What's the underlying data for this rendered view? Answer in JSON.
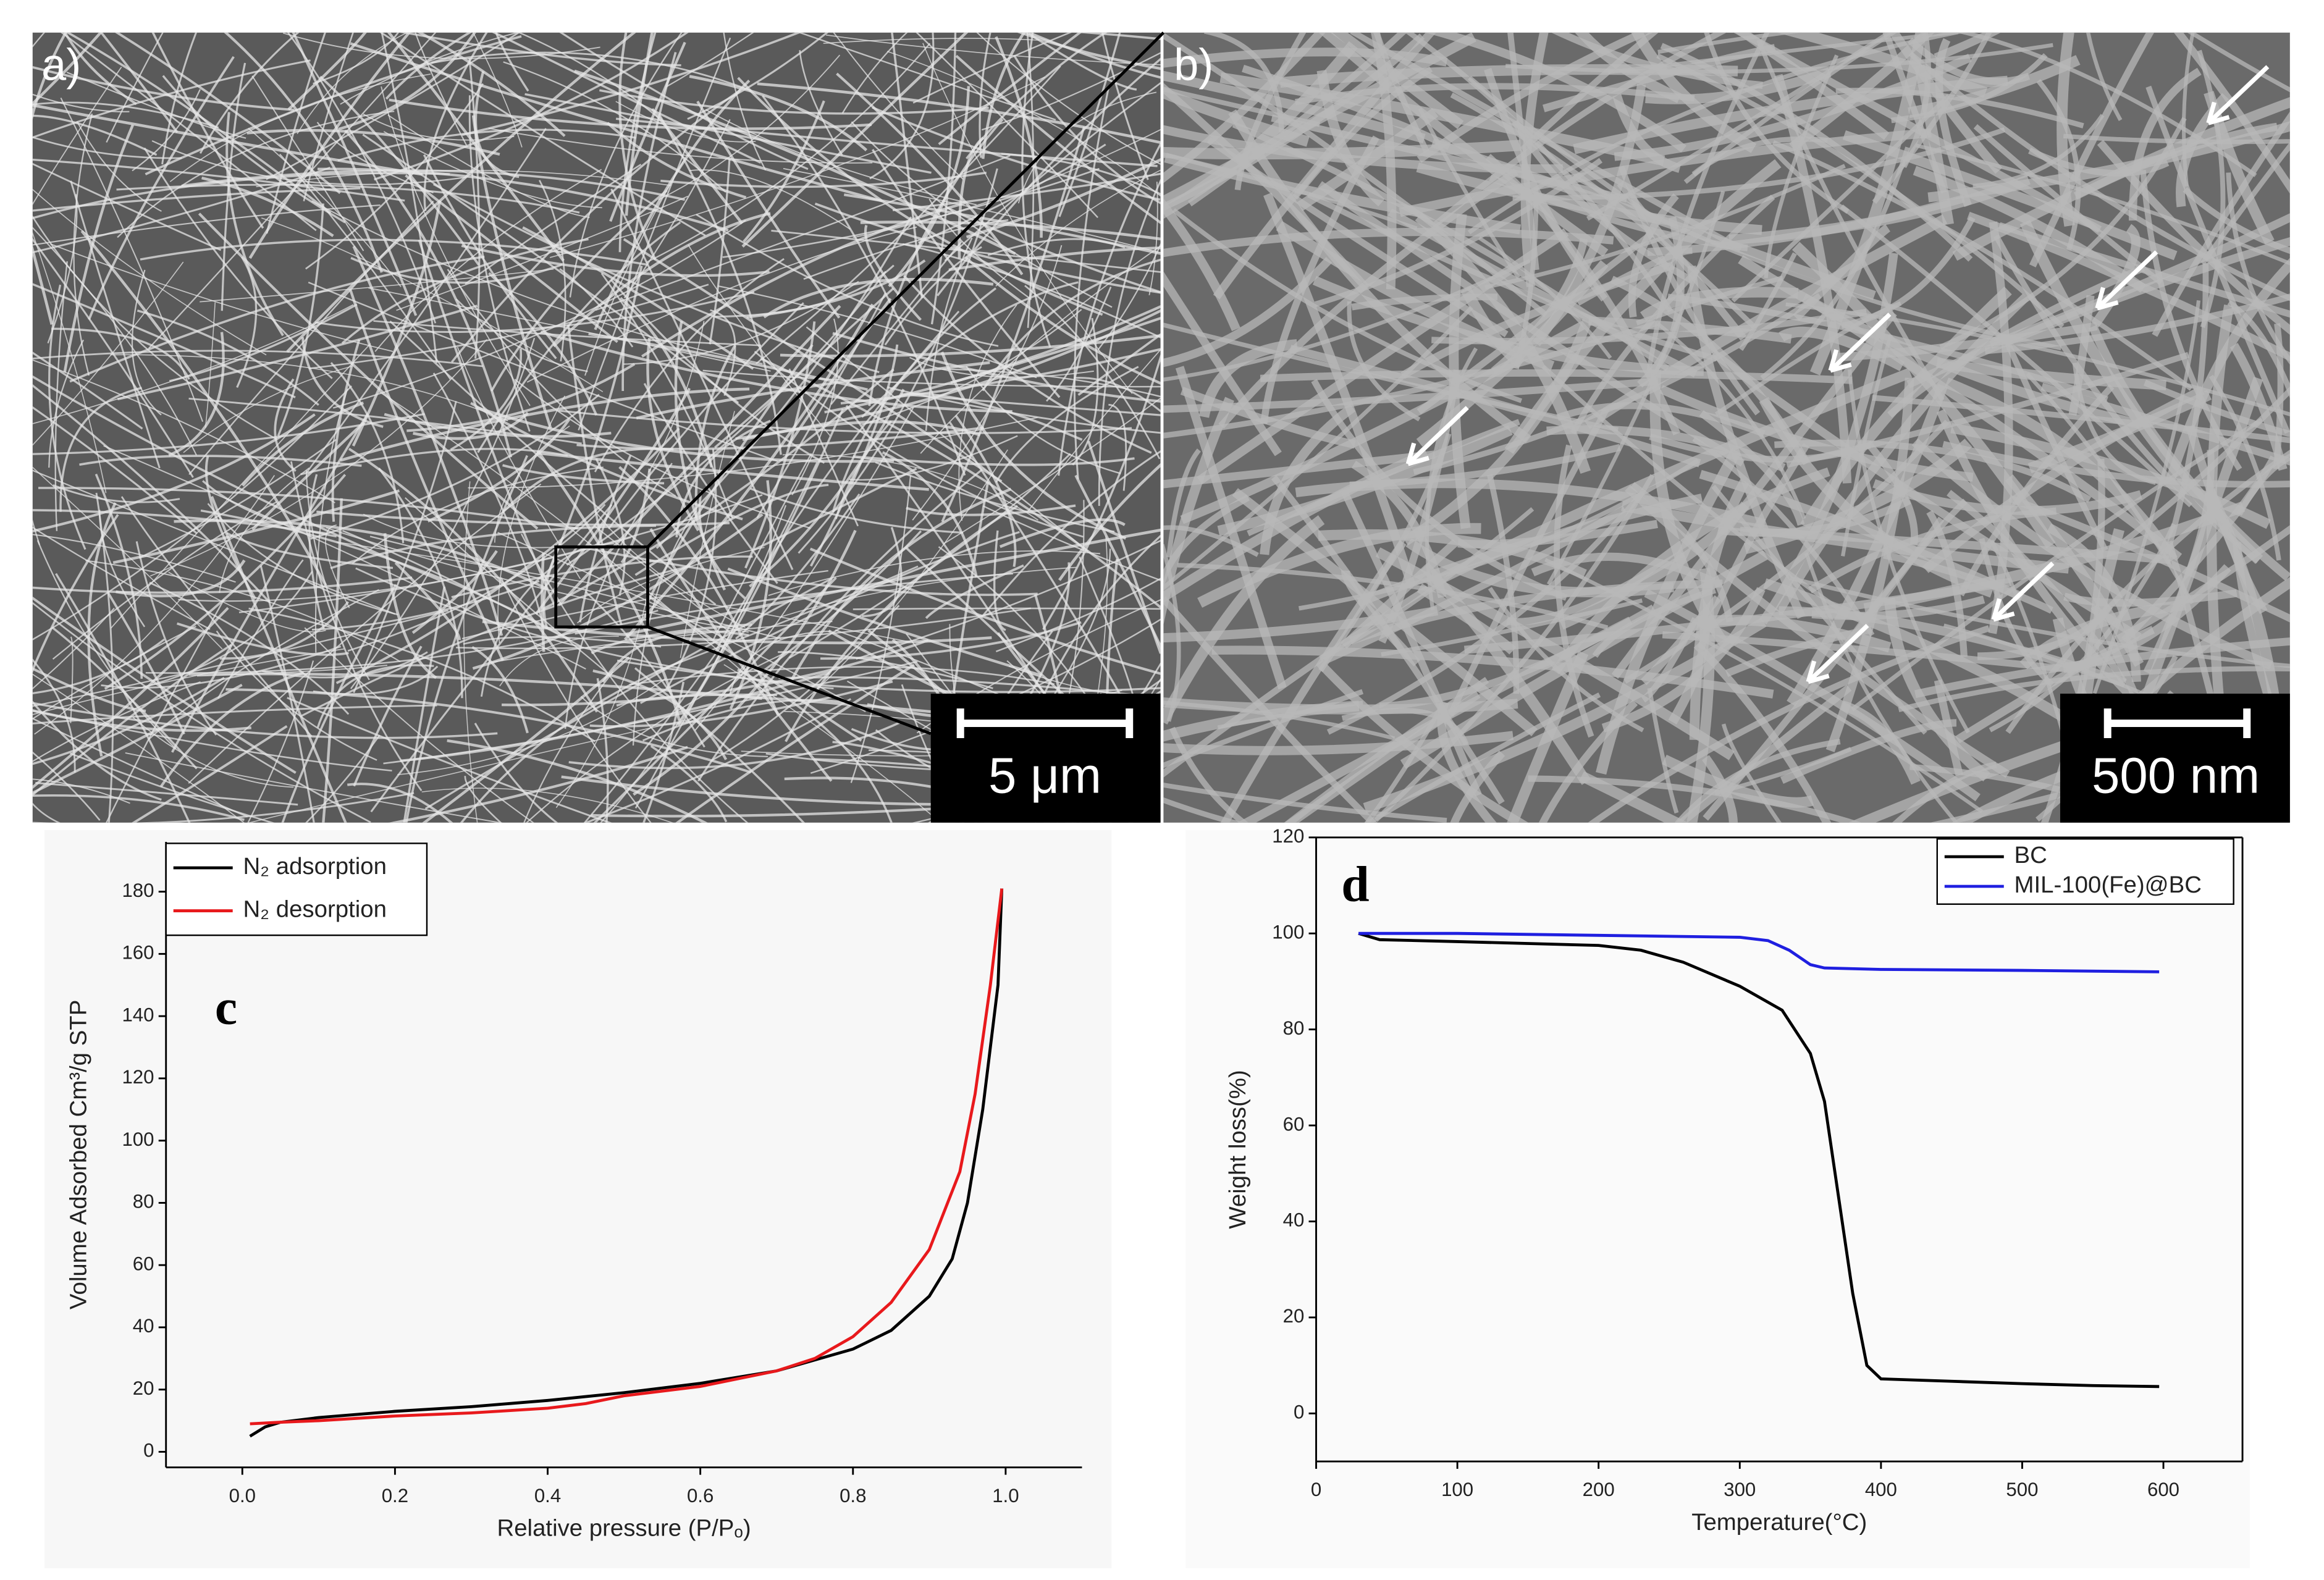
{
  "images": [
    {
      "label": "a)",
      "scale_bar": "5 μm"
    },
    {
      "label": "b)",
      "scale_bar": "500 nm"
    }
  ],
  "chart_data": [
    {
      "type": "line",
      "annotation": "c",
      "x_label": "Relative pressure (P/Pₒ)",
      "y_label": "Volume Adsorbed Cm³/g STP",
      "xlim": [
        -0.1,
        1.1
      ],
      "ylim": [
        -5,
        196
      ],
      "xticks": [
        {
          "value": 0,
          "label": "0.0"
        },
        0.2,
        0.4,
        0.6,
        0.8,
        {
          "value": 1,
          "label": "1.0"
        }
      ],
      "yticks": [
        0,
        20,
        40,
        60,
        80,
        100,
        120,
        140,
        160,
        180
      ],
      "legend": "upper left",
      "series": [
        {
          "name": "N₂ adsorption",
          "color": "#000000",
          "x": [
            0.01,
            0.03,
            0.05,
            0.1,
            0.2,
            0.3,
            0.4,
            0.5,
            0.6,
            0.7,
            0.8,
            0.85,
            0.9,
            0.93,
            0.95,
            0.97,
            0.99,
            0.995
          ],
          "values": [
            5,
            8,
            9.5,
            11,
            13,
            14.5,
            16.5,
            19,
            22,
            26,
            33,
            39,
            50,
            62,
            80,
            110,
            150,
            181
          ]
        },
        {
          "name": "N₂ desorption",
          "color": "#e8191c",
          "x": [
            0.995,
            0.98,
            0.96,
            0.94,
            0.9,
            0.85,
            0.8,
            0.75,
            0.7,
            0.6,
            0.5,
            0.45,
            0.4,
            0.3,
            0.2,
            0.1,
            0.05,
            0.01
          ],
          "values": [
            181,
            150,
            115,
            90,
            65,
            48,
            37,
            30,
            26,
            21,
            18,
            15.5,
            14,
            12.5,
            11.5,
            10,
            9.5,
            9
          ]
        }
      ]
    },
    {
      "type": "line",
      "annotation": "d",
      "x_label": "Temperature(°C)",
      "y_label": "Weight loss(%)",
      "xlim": [
        0,
        656
      ],
      "ylim": [
        -10,
        120
      ],
      "xticks": [
        0,
        100,
        200,
        300,
        400,
        500,
        600
      ],
      "yticks": [
        0,
        20,
        40,
        60,
        80,
        100,
        120
      ],
      "legend": "upper right",
      "series": [
        {
          "name": "BC",
          "color": "#000000",
          "x": [
            30,
            45,
            100,
            200,
            230,
            260,
            300,
            330,
            350,
            360,
            370,
            380,
            390,
            400,
            450,
            500,
            550,
            597
          ],
          "values": [
            100,
            98.7,
            98.3,
            97.5,
            96.5,
            94,
            89,
            84,
            75,
            65,
            45,
            25,
            10,
            7.2,
            6.7,
            6.2,
            5.8,
            5.6
          ]
        },
        {
          "name": "MIL-100(Fe)@BC",
          "color": "#1f1fe0",
          "x": [
            30,
            100,
            200,
            300,
            320,
            335,
            350,
            360,
            400,
            500,
            597
          ],
          "values": [
            100,
            100,
            99.6,
            99.2,
            98.5,
            96.5,
            93.5,
            92.8,
            92.5,
            92.3,
            92
          ]
        }
      ]
    }
  ]
}
